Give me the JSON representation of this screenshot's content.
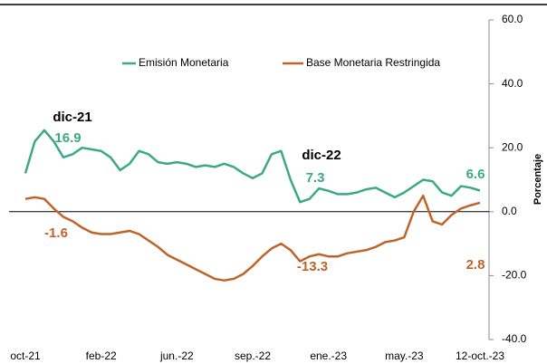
{
  "chart_data": {
    "type": "line",
    "categories": [
      "oct-21",
      null,
      null,
      null,
      null,
      null,
      null,
      null,
      "feb-22",
      null,
      null,
      null,
      null,
      null,
      null,
      null,
      "jun.-22",
      null,
      null,
      null,
      null,
      null,
      null,
      null,
      "sep.-22",
      null,
      null,
      null,
      null,
      null,
      null,
      null,
      "ene.-23",
      null,
      null,
      null,
      null,
      null,
      null,
      null,
      "may.-23",
      null,
      null,
      null,
      null,
      null,
      null,
      null,
      "12-oct.-23"
    ],
    "series": [
      {
        "name": "Emisión Monetaria",
        "color": "#3aaa85",
        "values": [
          12,
          22,
          25.5,
          22,
          17,
          18,
          20,
          19.5,
          19,
          17,
          13,
          15,
          19,
          18,
          15.5,
          15,
          15.5,
          15,
          14,
          14.5,
          14,
          15,
          14,
          12,
          10.5,
          12,
          18,
          19,
          10,
          3,
          4,
          7.3,
          6.5,
          5.5,
          5.5,
          6,
          7,
          7.5,
          6,
          4.5,
          6,
          8,
          10,
          9.5,
          6,
          5,
          8,
          7.5,
          6.6
        ]
      },
      {
        "name": "Base Monetaria Restringida",
        "color": "#c0632a",
        "values": [
          4,
          4.5,
          4,
          1,
          -1.6,
          -3,
          -5,
          -6.5,
          -7,
          -7,
          -6.5,
          -6,
          -7,
          -9,
          -11,
          -13.5,
          -15,
          -16.5,
          -18,
          -19.5,
          -21,
          -21.5,
          -21,
          -19.5,
          -17,
          -14,
          -11.5,
          -10,
          -12,
          -15.5,
          -14,
          -13.3,
          -14,
          -14,
          -13,
          -12.5,
          -12,
          -11,
          -9.5,
          -9,
          -8,
          0,
          5,
          -3,
          -4,
          -1,
          1,
          2,
          2.8
        ]
      }
    ],
    "ylabel": "Porcentaje",
    "ylim": [
      -40,
      60
    ],
    "yticks": [
      {
        "value": -40,
        "label": "-40.0"
      },
      {
        "value": -20,
        "label": "-20.0"
      },
      {
        "value": 0,
        "label": "0.0"
      },
      {
        "value": 20,
        "label": "20.0"
      },
      {
        "value": 40,
        "label": "40.0"
      },
      {
        "value": 60,
        "label": "60.0"
      }
    ],
    "annotations": [
      {
        "text": "dic-21",
        "color": "#000000"
      },
      {
        "text": "16.9",
        "color": "#3aaa85"
      },
      {
        "text": "-1.6",
        "color": "#c0632a"
      },
      {
        "text": "dic-22",
        "color": "#000000"
      },
      {
        "text": "7.3",
        "color": "#3aaa85"
      },
      {
        "text": "-13.3",
        "color": "#c0632a"
      },
      {
        "text": "6.6",
        "color": "#3aaa85"
      },
      {
        "text": "2.8",
        "color": "#c0632a"
      }
    ]
  }
}
